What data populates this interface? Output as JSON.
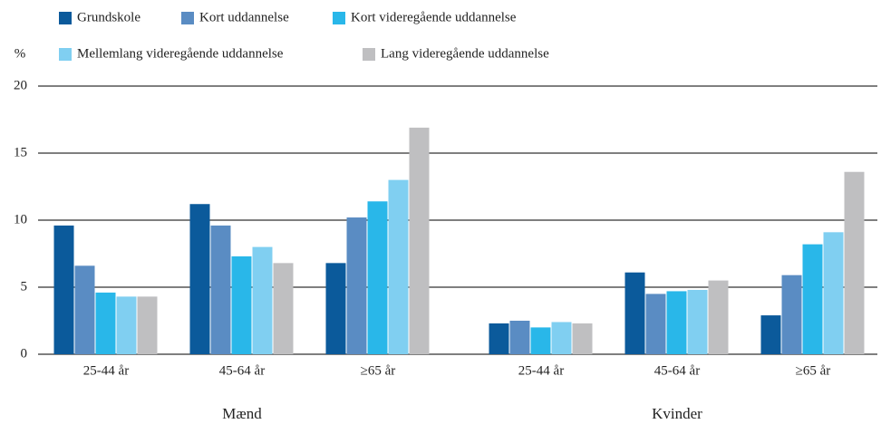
{
  "chart_data": {
    "type": "bar",
    "y_label": "%",
    "groups": [
      {
        "name": "Mænd",
        "categories": [
          "25-44 år",
          "45-64 år",
          "≥65 år"
        ]
      },
      {
        "name": "Kvinder",
        "categories": [
          "25-44 år",
          "45-64 år",
          "≥65 år"
        ]
      }
    ],
    "series": [
      {
        "name": "Grundskole",
        "color": "#0b5a9b",
        "values": [
          9.6,
          11.2,
          6.8,
          2.3,
          6.1,
          2.9
        ]
      },
      {
        "name": "Kort uddannelse",
        "color": "#5a8cc3",
        "values": [
          6.6,
          9.6,
          10.2,
          2.5,
          4.5,
          5.9
        ]
      },
      {
        "name": "Kort videregående uddannelse",
        "color": "#29b7e9",
        "values": [
          4.6,
          7.3,
          11.4,
          2.0,
          4.7,
          8.2
        ]
      },
      {
        "name": "Mellemlang videregående uddannelse",
        "color": "#80cff1",
        "values": [
          4.3,
          8.0,
          13.0,
          2.4,
          4.8,
          9.1
        ]
      },
      {
        "name": "Lang videregående uddannelse",
        "color": "#bfbfc1",
        "values": [
          4.3,
          6.8,
          16.9,
          2.3,
          5.5,
          13.6
        ]
      }
    ],
    "ylim": [
      0,
      20
    ],
    "yticks": [
      0,
      5,
      10,
      15,
      20
    ],
    "grid": true
  }
}
